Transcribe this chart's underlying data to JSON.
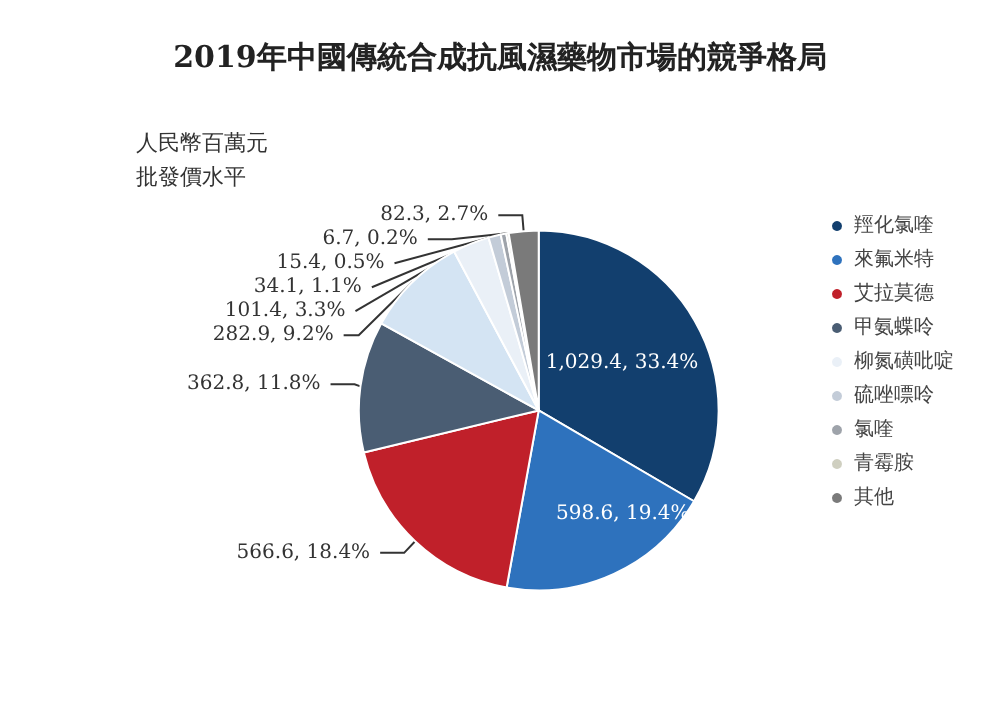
{
  "chart_data": {
    "type": "pie",
    "title": "2019年中國傳統合成抗風濕藥物市場的競爭格局",
    "annotations": [
      "人民幣百萬元",
      "批發價水平"
    ],
    "categories": [
      "羥化氯喹",
      "來氟米特",
      "艾拉莫德",
      "甲氨蝶呤",
      null,
      "柳氮磺吡啶",
      "硫唑嘌呤",
      "氯喹",
      "青霉胺",
      "其他"
    ],
    "values": [
      1029.4,
      598.6,
      566.6,
      362.8,
      282.9,
      101.4,
      34.1,
      15.4,
      6.7,
      82.3
    ],
    "value_labels": [
      "1,029.4, 33.4%",
      "598.6, 19.4%",
      "566.6, 18.4%",
      "362.8, 11.8%",
      "282.9, 9.2%",
      "101.4, 3.3%",
      "34.1, 1.1%",
      "15.4, 0.5%",
      "6.7, 0.2%",
      "82.3, 2.7%"
    ],
    "colors": [
      "#123f6e",
      "#2e72bd",
      "#c0202a",
      "#4a5d73",
      "#d4e4f3",
      "#eaf0f7",
      "#c3ccd8",
      "#9ea3aa",
      "#cfcfc0",
      "#7a7a7a"
    ],
    "legend": "right"
  }
}
